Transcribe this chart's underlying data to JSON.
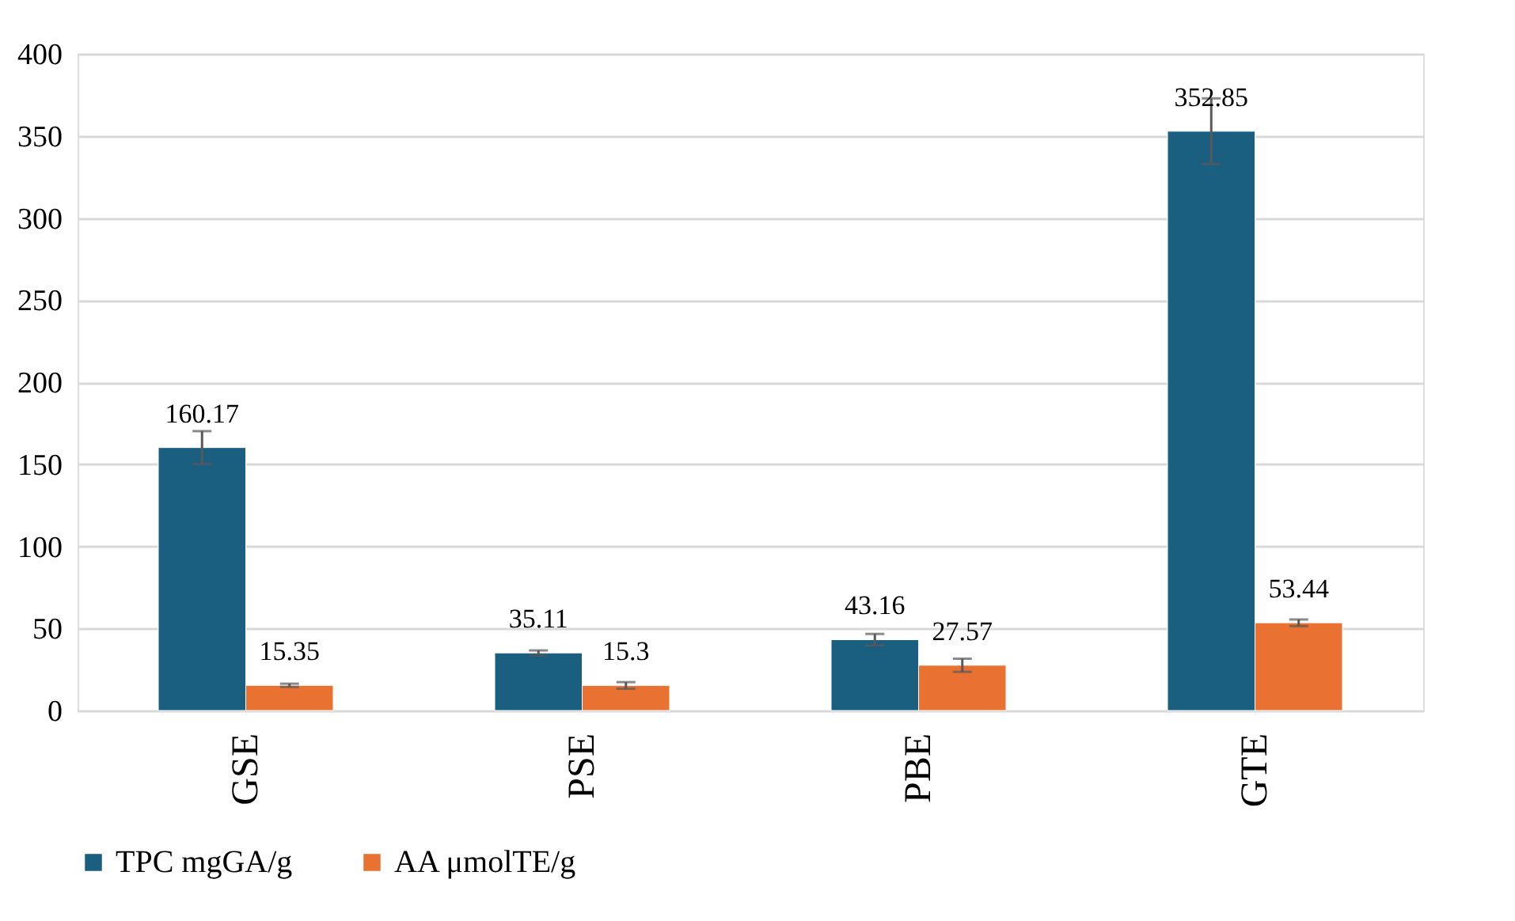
{
  "chart_data": {
    "type": "bar",
    "categories": [
      "GSE",
      "PSE",
      "PBE",
      "GTE"
    ],
    "series": [
      {
        "name": "TPC mgGA/g",
        "color": "#1a5e80",
        "values": [
          160.17,
          35.11,
          43.16,
          352.85
        ],
        "errors": [
          10,
          1.5,
          3.5,
          20
        ]
      },
      {
        "name": "AA μmolTE/g",
        "color": "#e97232",
        "values": [
          15.35,
          15.3,
          27.57,
          53.44
        ],
        "errors": [
          1,
          2,
          4,
          2
        ]
      }
    ],
    "ylim": [
      0,
      400
    ],
    "yticks": [
      0,
      50,
      100,
      150,
      200,
      250,
      300,
      350,
      400
    ],
    "grid": "y",
    "legend": "bottom",
    "data_labels": true
  }
}
